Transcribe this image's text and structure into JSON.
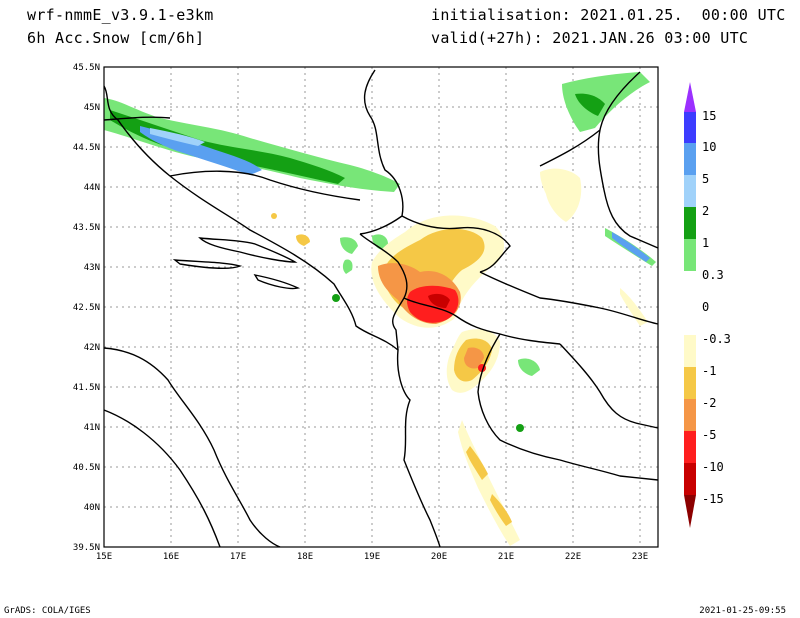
{
  "header": {
    "model": "wrf-nmmE_v3.9.1-e3km",
    "field": "6h Acc.Snow [cm/6h]",
    "init": "initialisation: 2021.01.25.  00:00 UTC",
    "valid": "valid(+27h): 2021.JAN.26 03:00 UTC"
  },
  "footer": {
    "left": "GrADS: COLA/IGES",
    "right": "2021-01-25-09:55"
  },
  "map": {
    "lat_labels": [
      "45.5N",
      "45N",
      "44.5N",
      "44N",
      "43.5N",
      "43N",
      "42.5N",
      "42N",
      "41.5N",
      "41N",
      "40.5N",
      "40N",
      "39.5N"
    ],
    "lon_labels": [
      "15E",
      "16E",
      "17E",
      "18E",
      "19E",
      "20E",
      "21E",
      "22E",
      "23E"
    ]
  },
  "colorbar": {
    "labels": [
      "15",
      "10",
      "5",
      "2",
      "1",
      "0.3",
      "0",
      "-0.3",
      "-1",
      "-2",
      "-5",
      "-10",
      "-15"
    ],
    "colors": [
      "#9b30ff",
      "#3c3cff",
      "#5aa0f0",
      "#a0d2fa",
      "#14a014",
      "#78e678",
      "#ffffff",
      "#fffac8",
      "#f5c846",
      "#f59646",
      "#ff1e1e",
      "#c80000",
      "#8c0000"
    ]
  }
}
